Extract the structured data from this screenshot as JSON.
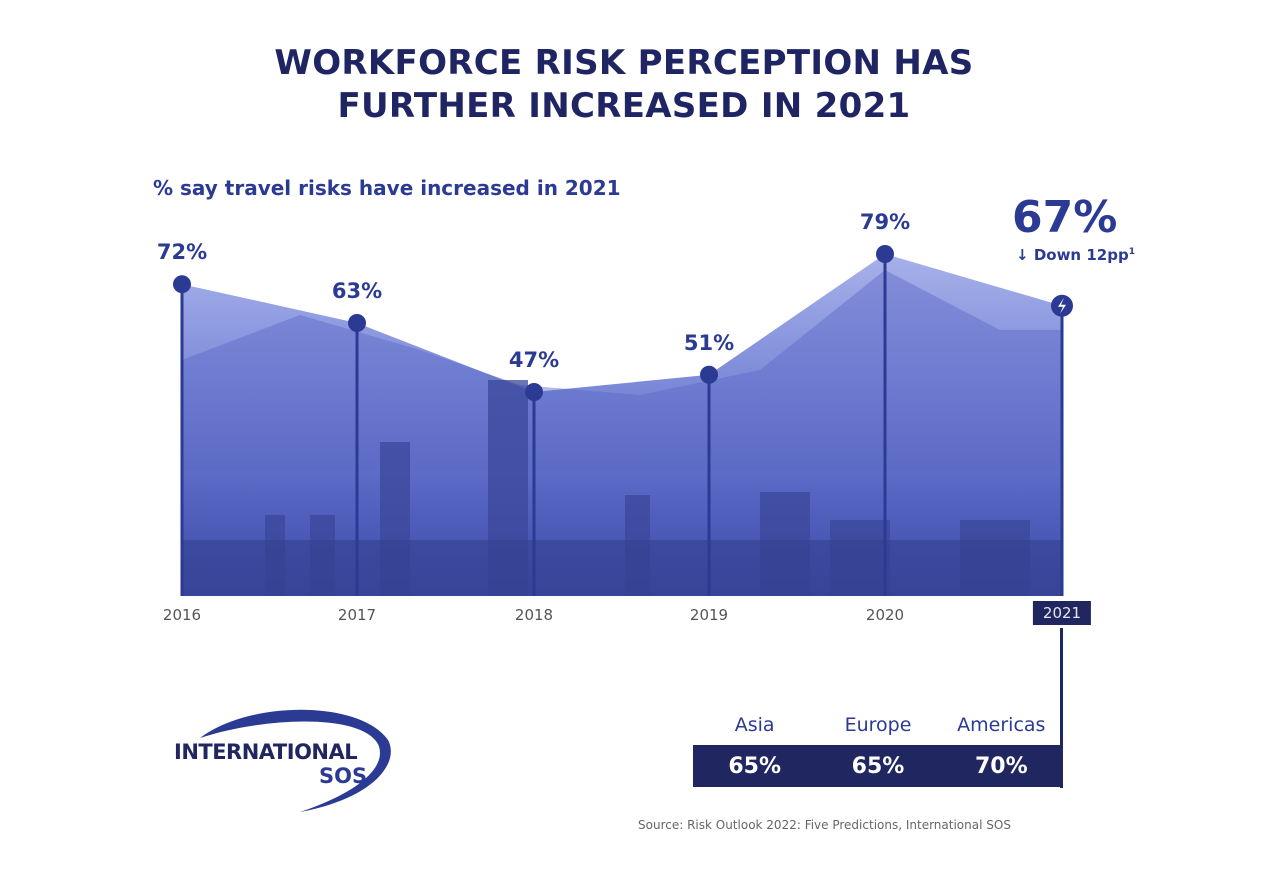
{
  "header": {
    "title_line1": "WORKFORCE RISK PERCEPTION HAS",
    "title_line2": "FURTHER INCREASED IN 2021"
  },
  "subtitle": "% say travel risks have increased in 2021",
  "highlight": {
    "value_label": "67%",
    "change_arrow": "↓",
    "change_text": "Down 12pp",
    "change_footnote": "1",
    "icon": "lightning-bolt-icon"
  },
  "regions": {
    "year": "2021",
    "items": [
      {
        "name": "Asia",
        "value": "65%"
      },
      {
        "name": "Europe",
        "value": "65%"
      },
      {
        "name": "Americas",
        "value": "70%"
      }
    ]
  },
  "logo": {
    "line1": "INTERNATIONAL",
    "line2": "SOS"
  },
  "source": "Source: Risk Outlook 2022: Five Predictions, International SOS",
  "colors": {
    "navy": "#20265f",
    "accent_blue": "#2b3a93",
    "area_fill": "#6b7bd1",
    "area_light": "#a9b3ea"
  },
  "chart_data": {
    "type": "area",
    "title": "WORKFORCE RISK PERCEPTION HAS FURTHER INCREASED IN 2021",
    "subtitle": "% say travel risks have increased in 2021",
    "categories": [
      "2016",
      "2017",
      "2018",
      "2019",
      "2020",
      "2021"
    ],
    "values": [
      72,
      63,
      47,
      51,
      79,
      67
    ],
    "labels": [
      "72%",
      "63%",
      "47%",
      "51%",
      "79%",
      "67%"
    ],
    "xlabel": "",
    "ylabel": "% say travel risks have increased",
    "annotations": [
      "2021: Down 12pp"
    ],
    "regional_breakdown_2021": {
      "categories": [
        "Asia",
        "Europe",
        "Americas"
      ],
      "values": [
        65,
        65,
        70
      ]
    },
    "grid": false,
    "source": "Source: Risk Outlook 2022: Five Predictions, International SOS"
  }
}
